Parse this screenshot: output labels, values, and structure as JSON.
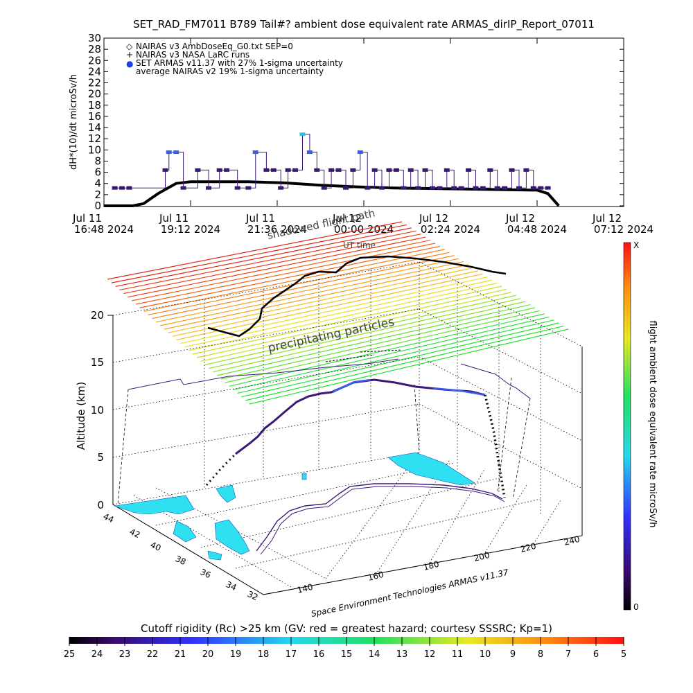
{
  "title": "SET_RAD_FM7011  B789 Tail#? ambient dose equivalent rate ARMAS_dirIP_Report_07011",
  "top_chart": {
    "ylabel": "dH*(10)/dt microSv/h",
    "y_ticks": [
      "0",
      "2",
      "4",
      "6",
      "8",
      "10",
      "12",
      "14",
      "16",
      "18",
      "20",
      "22",
      "24",
      "26",
      "28",
      "30"
    ],
    "x_ticks": [
      {
        "line1": "Jul 11",
        "line2": "16:48 2024"
      },
      {
        "line1": "Jul 11",
        "line2": "19:12 2024"
      },
      {
        "line1": "Jul 11",
        "line2": "21:36 2024"
      },
      {
        "line1": "Jul 12",
        "line2": "00:00 2024"
      },
      {
        "line1": "Jul 12",
        "line2": "02:24 2024"
      },
      {
        "line1": "Jul 12",
        "line2": "04:48 2024"
      },
      {
        "line1": "Jul 12",
        "line2": "07:12 2024"
      }
    ],
    "legend": [
      "NAIRAS v3 AmbDoseEq_G0.txt SEP=0",
      "NAIRAS v3 NASA LaRC runs",
      "SET ARMAS v11.37 with 27% 1-sigma uncertainty",
      "average NAIRAS v2 19% 1-sigma uncertainty"
    ],
    "legend_symbols": [
      "◇",
      "+",
      "●",
      ""
    ]
  },
  "chart_data": [
    {
      "type": "scatter",
      "title": "SET_RAD_FM7011  B789 Tail#? ambient dose equivalent rate ARMAS_dirIP_Report_07011",
      "xlabel": "",
      "ylabel": "dH*(10)/dt microSv/h",
      "x_unit": "hours after Jul 11 16:48 2024",
      "xlim": [
        0,
        14.4
      ],
      "ylim": [
        0,
        30
      ],
      "series": [
        {
          "name": "NAIRAS v3 AmbDoseEq_G0.txt SEP=0",
          "x": [
            0,
            0.8,
            1.1,
            1.5,
            2.0,
            2.4,
            3.0,
            4.0,
            5.0,
            6.0,
            7.0,
            8.0,
            9.0,
            10.0,
            11.0,
            12.0,
            12.3,
            12.6
          ],
          "y": [
            0,
            0,
            0.4,
            2.2,
            4.0,
            4.3,
            4.3,
            4.3,
            4.1,
            3.7,
            3.4,
            3.2,
            3.1,
            3.0,
            2.9,
            2.8,
            2.2,
            0
          ]
        },
        {
          "name": "SET ARMAS v11.37 with 27% 1-sigma uncertainty",
          "x": [
            0.3,
            0.5,
            0.7,
            1.7,
            1.8,
            2.0,
            2.2,
            2.6,
            2.9,
            3.2,
            3.4,
            3.7,
            4.0,
            4.2,
            4.5,
            4.7,
            4.9,
            5.1,
            5.3,
            5.5,
            5.7,
            5.9,
            6.1,
            6.3,
            6.5,
            6.7,
            6.9,
            7.1,
            7.3,
            7.5,
            7.7,
            7.9,
            8.1,
            8.3,
            8.5,
            8.7,
            8.9,
            9.1,
            9.3,
            9.5,
            9.7,
            9.9,
            10.1,
            10.3,
            10.5,
            10.7,
            10.9,
            11.1,
            11.3,
            11.5,
            11.7,
            11.9,
            12.1,
            12.3
          ],
          "y": [
            3.2,
            3.2,
            3.2,
            6.4,
            9.6,
            9.6,
            3.2,
            6.4,
            3.2,
            6.4,
            6.4,
            3.2,
            3.2,
            9.6,
            6.4,
            6.4,
            3.2,
            6.4,
            6.4,
            12.8,
            9.6,
            6.4,
            3.2,
            6.4,
            6.4,
            3.2,
            6.4,
            9.6,
            3.2,
            6.4,
            3.2,
            6.4,
            6.4,
            3.2,
            6.4,
            3.2,
            6.4,
            3.2,
            3.2,
            6.4,
            3.2,
            3.2,
            6.4,
            3.2,
            3.2,
            6.4,
            3.2,
            3.2,
            6.4,
            3.2,
            6.4,
            3.2,
            3.2,
            3.2
          ]
        }
      ]
    },
    {
      "type": "3d-trajectory",
      "zlabel": "Altitude (km)",
      "zlim": [
        0,
        20
      ],
      "z_ticks": [
        "0",
        "5",
        "10",
        "15",
        "20"
      ],
      "lat_ticks": [
        "44",
        "42",
        "40",
        "38",
        "36",
        "34",
        "32"
      ],
      "lon_ticks": [
        "140",
        "160",
        "180",
        "200",
        "220",
        "240"
      ],
      "annotations": [
        "shadowed flight path",
        "UT time",
        "precipitating particles"
      ],
      "colorbar_label": "flight ambient dose equivalent rate microSv/h",
      "colorbar_range_labels": [
        "0",
        "X"
      ],
      "footer": "Space Environment Technologies ARMAS v11.37"
    },
    {
      "type": "colorbar",
      "title": "Cutoff rigidity (Rc) >25 km (GV: red = greatest hazard; courtesy SSSRC; Kp=1)",
      "tick_labels": [
        "25",
        "24",
        "23",
        "22",
        "21",
        "20",
        "19",
        "18",
        "17",
        "16",
        "15",
        "14",
        "13",
        "12",
        "11",
        "10",
        "9",
        "8",
        "7",
        "6",
        "5"
      ]
    }
  ],
  "colors": {
    "nairas_line": "#000000",
    "armas_low": "#3b1877",
    "armas_mid": "#3a5cf0",
    "armas_high": "#27c4e8",
    "ocean_fill": "#2fe0f0"
  }
}
